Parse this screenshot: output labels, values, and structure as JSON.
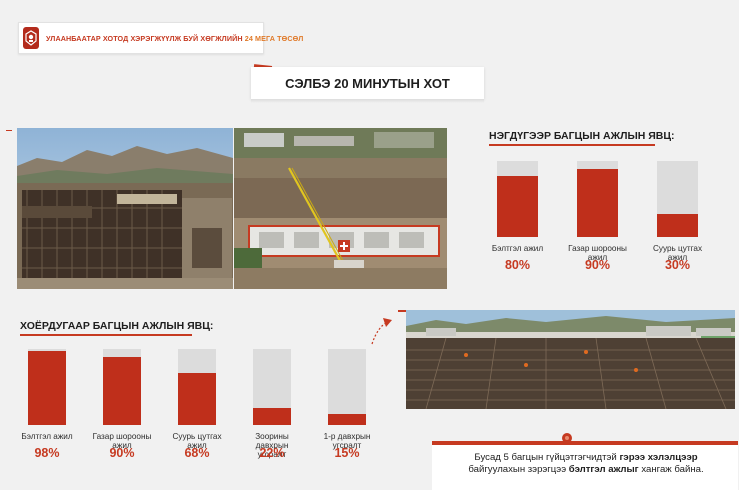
{
  "header": {
    "text_main": "УЛААНБААТАР ХОТОД ХЭРЭГЖҮҮЛЖ БУЙ ХӨГЖЛИЙН",
    "text_highlight": "24 МЕГА ТӨСӨЛ",
    "logo_icon": "city-emblem-icon"
  },
  "title": "СЭЛБЭ 20 МИНУТЫН ХОТ",
  "phase1": {
    "title": "НЭГДҮГЭЭР БАГЦЫН АЖЛЫН ЯВЦ:",
    "bars": [
      {
        "label": "Бэлтгэл ажил",
        "percent_text": "80%",
        "value": 80
      },
      {
        "label": "Газар шорооны ажил",
        "percent_text": "90%",
        "value": 90
      },
      {
        "label": "Суурь цутгах ажил",
        "percent_text": "30%",
        "value": 30
      }
    ]
  },
  "phase2": {
    "title": "ХОЁРДУГААР БАГЦЫН АЖЛЫН ЯВЦ:",
    "bars": [
      {
        "label": "Бэлтгэл ажил",
        "percent_text": "98%",
        "value": 98
      },
      {
        "label": "Газар шорооны ажил",
        "percent_text": "90%",
        "value": 90
      },
      {
        "label": "Суурь цутгах ажил",
        "percent_text": "68%",
        "value": 68
      },
      {
        "label": "Зоорины давхрын угсралт",
        "percent_text": "22%",
        "value": 22
      },
      {
        "label": "1-р давхрын угсралт",
        "percent_text": "15%",
        "value": 15
      }
    ]
  },
  "note": {
    "part1": "Бусад 5 багцын гүйцэтгэгчидтэй",
    "bold1": "гэрээ хэлэлцээр",
    "part2": "байгуулахын зэрэгцээ",
    "bold2": "бэлтгэл ажлыг",
    "part3": "хангаж байна."
  },
  "colors": {
    "accent": "#c63a21",
    "bar_fill": "#bf2f1b",
    "bar_bg": "#dcdcdc"
  },
  "chart_data": [
    {
      "type": "bar",
      "title": "НЭГДҮГЭЭР БАГЦЫН АЖЛЫН ЯВЦ:",
      "categories": [
        "Бэлтгэл ажил",
        "Газар шорооны ажил",
        "Суурь цутгах ажил"
      ],
      "values": [
        80,
        90,
        30
      ],
      "ylim": [
        0,
        100
      ]
    },
    {
      "type": "bar",
      "title": "ХОЁРДУГААР БАГЦЫН АЖЛЫН ЯВЦ:",
      "categories": [
        "Бэлтгэл ажил",
        "Газар шорооны ажил",
        "Суурь цутгах ажил",
        "Зоорины давхрын угсралт",
        "1-р давхрын угсралт"
      ],
      "values": [
        98,
        90,
        68,
        22,
        15
      ],
      "ylim": [
        0,
        100
      ]
    }
  ]
}
